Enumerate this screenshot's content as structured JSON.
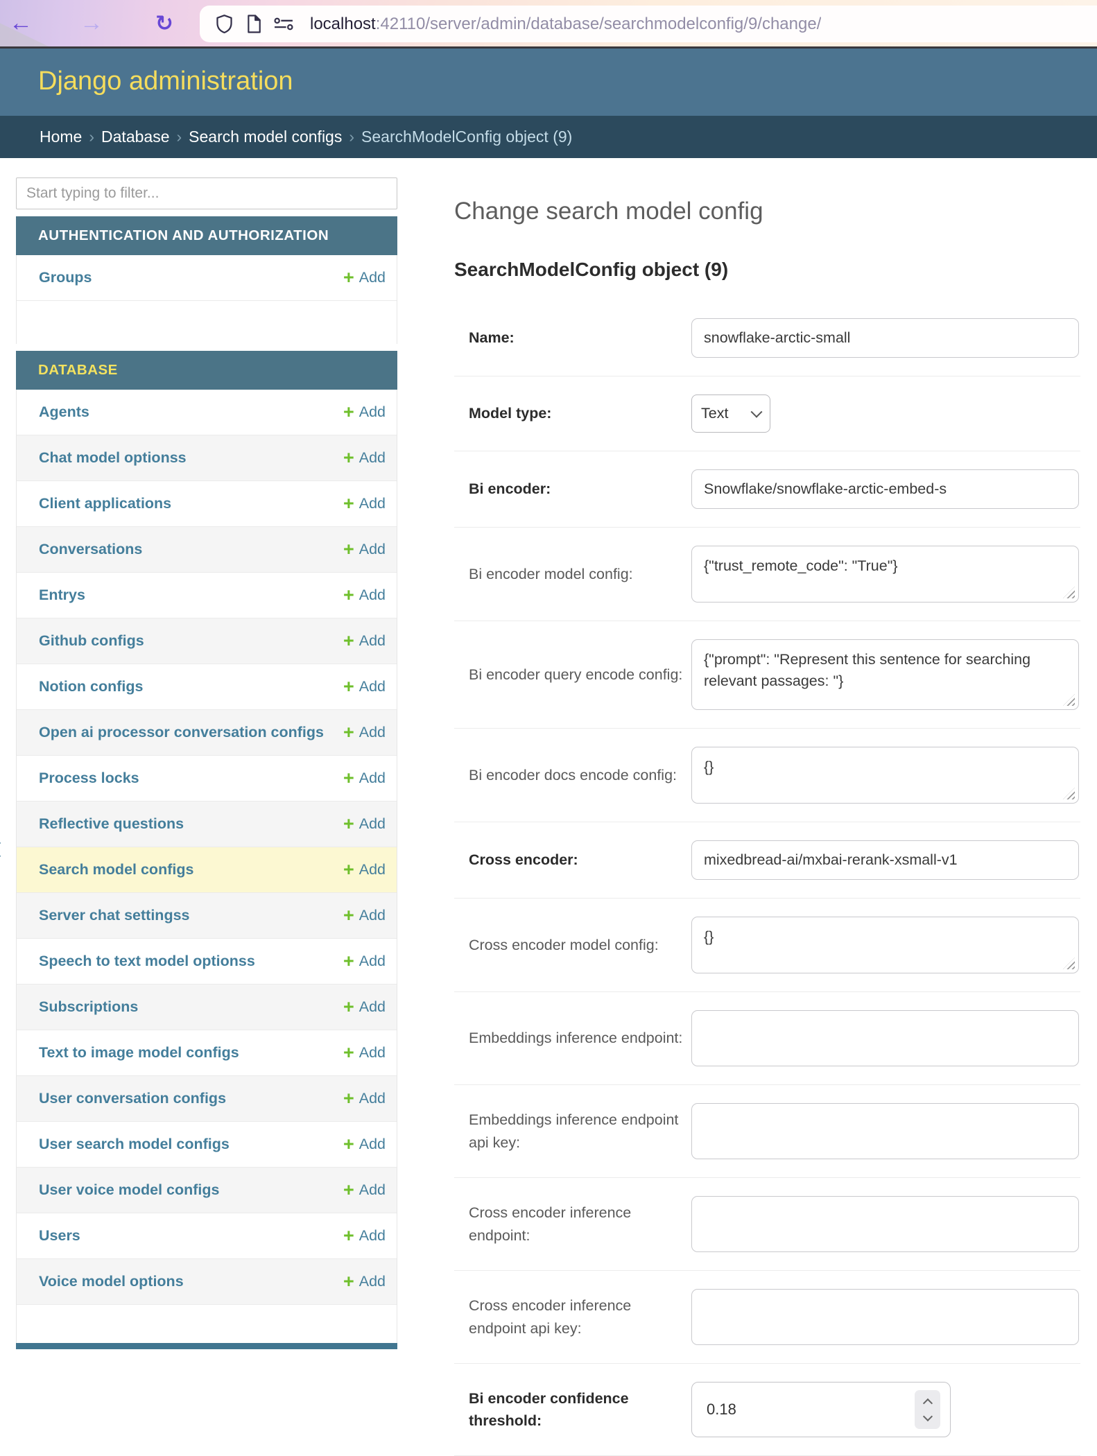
{
  "browser": {
    "back_glyph": "←",
    "forward_glyph": "→",
    "reload_glyph": "↻",
    "url_host": "localhost",
    "url_path": ":42110/server/admin/database/searchmodelconfig/9/change/",
    "icons": [
      "shield-icon",
      "document-icon",
      "permissions-icon"
    ]
  },
  "header": {
    "title": "Django administration"
  },
  "breadcrumbs": {
    "links": [
      "Home",
      "Database",
      "Search model configs"
    ],
    "current": "SearchModelConfig object (9)",
    "separator": "›"
  },
  "sidebar": {
    "filter_placeholder": "Start typing to filter...",
    "toggle_glyph": "‹",
    "add_icon": "+",
    "add_label": "Add",
    "sections": [
      {
        "title": "AUTHENTICATION AND AUTHORIZATION",
        "current_app": false,
        "items": [
          {
            "label": "Groups"
          }
        ]
      },
      {
        "title": "DATABASE",
        "current_app": true,
        "items": [
          {
            "label": "Agents"
          },
          {
            "label": "Chat model optionss"
          },
          {
            "label": "Client applications"
          },
          {
            "label": "Conversations"
          },
          {
            "label": "Entrys"
          },
          {
            "label": "Github configs"
          },
          {
            "label": "Notion configs"
          },
          {
            "label": "Open ai processor conversation configs"
          },
          {
            "label": "Process locks"
          },
          {
            "label": "Reflective questions"
          },
          {
            "label": "Search model configs",
            "current": true
          },
          {
            "label": "Server chat settingss"
          },
          {
            "label": "Speech to text model optionss"
          },
          {
            "label": "Subscriptions"
          },
          {
            "label": "Text to image model configs"
          },
          {
            "label": "User conversation configs"
          },
          {
            "label": "User search model configs"
          },
          {
            "label": "User voice model configs"
          },
          {
            "label": "Users"
          },
          {
            "label": "Voice model options"
          }
        ]
      }
    ]
  },
  "main": {
    "page_title": "Change search model config",
    "object_title": "SearchModelConfig object (9)",
    "fields": [
      {
        "label": "Name:",
        "required": true,
        "type": "text",
        "value": "snowflake-arctic-small"
      },
      {
        "label": "Model type:",
        "required": true,
        "type": "select",
        "value": "Text",
        "icon": "chevron-down"
      },
      {
        "label": "Bi encoder:",
        "required": true,
        "type": "text",
        "value": "Snowflake/snowflake-arctic-embed-s"
      },
      {
        "label": "Bi encoder model config:",
        "required": false,
        "type": "textarea",
        "rows": 1,
        "value": "{\"trust_remote_code\": \"True\"}"
      },
      {
        "label": "Bi encoder query encode config:",
        "required": false,
        "type": "textarea",
        "rows": 2,
        "value": "{\"prompt\": \"Represent this sentence for searching relevant passages: \"}"
      },
      {
        "label": "Bi encoder docs encode config:",
        "required": false,
        "type": "textarea",
        "rows": 1,
        "value": "{}"
      },
      {
        "label": "Cross encoder:",
        "required": true,
        "type": "text",
        "value": "mixedbread-ai/mxbai-rerank-xsmall-v1"
      },
      {
        "label": "Cross encoder model config:",
        "required": false,
        "type": "textarea",
        "rows": 1,
        "value": "{}"
      },
      {
        "label": "Embeddings inference endpoint:",
        "required": false,
        "type": "box",
        "value": ""
      },
      {
        "label": "Embeddings inference endpoint api key:",
        "required": false,
        "type": "box",
        "value": ""
      },
      {
        "label": "Cross encoder inference endpoint:",
        "required": false,
        "type": "box",
        "value": ""
      },
      {
        "label": "Cross encoder inference endpoint api key:",
        "required": false,
        "type": "box",
        "value": ""
      },
      {
        "label": "Bi encoder confidence threshold:",
        "required": true,
        "type": "number",
        "value": "0.18",
        "icons": [
          "chevron-up",
          "chevron-down"
        ]
      }
    ]
  },
  "colors": {
    "header_bg": "#4c7490",
    "breadcrumbs_bg": "#2c4a5d",
    "section_caption_bg": "#4b7487",
    "header_title": "#f5dd5d",
    "link_blue": "#447e9b",
    "add_green": "#6fbf2c",
    "highlight_row": "#fcf8d2",
    "toolbar_accent_purple": "#6847d5"
  }
}
